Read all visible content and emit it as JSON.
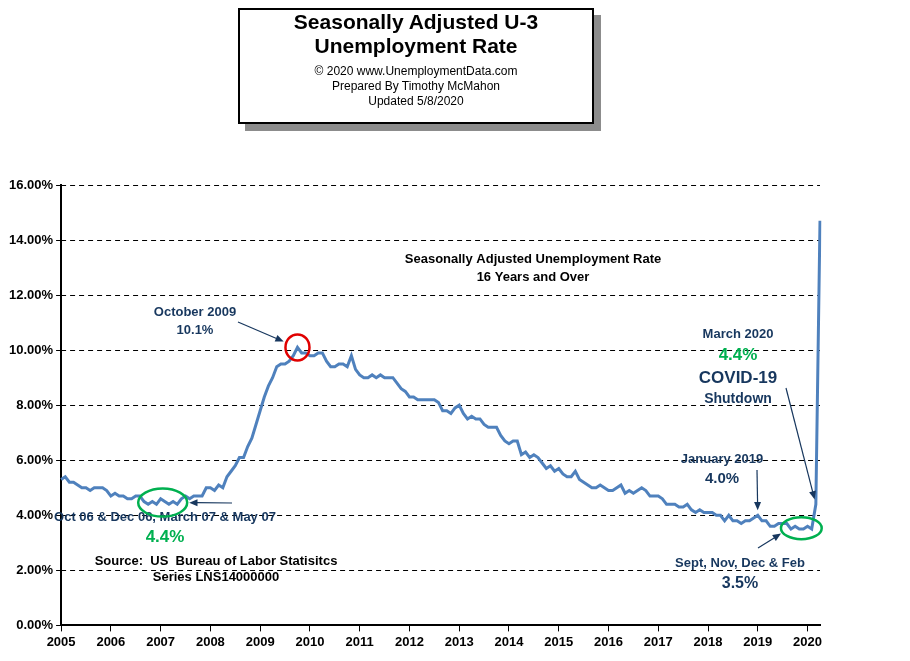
{
  "chart_data": {
    "type": "line",
    "title": [
      "Seasonally Adjusted U-3",
      "Unemployment Rate"
    ],
    "subtitle": [
      "© 2020  www.UnemploymentData.com",
      "Prepared By Timothy McMahon",
      "Updated 5/8/2020"
    ],
    "plot_label": [
      "Seasonally Adjusted Unemployment Rate",
      "16 Years and Over"
    ],
    "source": [
      "Source:  US  Bureau of Labor Statisitcs",
      "Series LNS14000000"
    ],
    "annotations": [
      {
        "text": [
          "October 2009",
          "10.1%"
        ]
      },
      {
        "text": [
          "Oct 06 & Dec 06, March 07 & May 07",
          "4.4%"
        ]
      },
      {
        "text": [
          "January 2019",
          "4.0%"
        ]
      },
      {
        "text": [
          "March 2020",
          "4.4%",
          "COVID-19",
          "Shutdown"
        ]
      },
      {
        "text": [
          "Sept, Nov, Dec & Feb",
          "3.5%"
        ]
      }
    ],
    "categories": [
      "2005",
      null,
      null,
      null,
      null,
      null,
      null,
      null,
      null,
      null,
      null,
      null,
      "2006",
      null,
      null,
      null,
      null,
      null,
      null,
      null,
      null,
      null,
      null,
      null,
      "2007",
      null,
      null,
      null,
      null,
      null,
      null,
      null,
      null,
      null,
      null,
      null,
      "2008",
      null,
      null,
      null,
      null,
      null,
      null,
      null,
      null,
      null,
      null,
      null,
      "2009",
      null,
      null,
      null,
      null,
      null,
      null,
      null,
      null,
      null,
      null,
      null,
      "2010",
      null,
      null,
      null,
      null,
      null,
      null,
      null,
      null,
      null,
      null,
      null,
      "2011",
      null,
      null,
      null,
      null,
      null,
      null,
      null,
      null,
      null,
      null,
      null,
      "2012",
      null,
      null,
      null,
      null,
      null,
      null,
      null,
      null,
      null,
      null,
      null,
      "2013",
      null,
      null,
      null,
      null,
      null,
      null,
      null,
      null,
      null,
      null,
      null,
      "2014",
      null,
      null,
      null,
      null,
      null,
      null,
      null,
      null,
      null,
      null,
      null,
      "2015",
      null,
      null,
      null,
      null,
      null,
      null,
      null,
      null,
      null,
      null,
      null,
      "2016",
      null,
      null,
      null,
      null,
      null,
      null,
      null,
      null,
      null,
      null,
      null,
      "2017",
      null,
      null,
      null,
      null,
      null,
      null,
      null,
      null,
      null,
      null,
      null,
      "2018",
      null,
      null,
      null,
      null,
      null,
      null,
      null,
      null,
      null,
      null,
      null,
      "2019",
      null,
      null,
      null,
      null,
      null,
      null,
      null,
      null,
      null,
      null,
      null,
      "2020",
      null,
      null,
      null
    ],
    "values": [
      5.3,
      5.4,
      5.2,
      5.2,
      5.1,
      5.0,
      5.0,
      4.9,
      5.0,
      5.0,
      5.0,
      4.9,
      4.7,
      4.8,
      4.7,
      4.7,
      4.6,
      4.6,
      4.7,
      4.7,
      4.5,
      4.4,
      4.5,
      4.4,
      4.6,
      4.5,
      4.4,
      4.5,
      4.4,
      4.6,
      4.7,
      4.6,
      4.7,
      4.7,
      4.7,
      5.0,
      5.0,
      4.9,
      5.1,
      5.0,
      5.4,
      5.6,
      5.8,
      6.1,
      6.1,
      6.5,
      6.8,
      7.3,
      7.8,
      8.3,
      8.7,
      9.0,
      9.4,
      9.5,
      9.5,
      9.6,
      9.8,
      10.1,
      9.9,
      9.9,
      9.8,
      9.8,
      9.9,
      9.9,
      9.6,
      9.4,
      9.4,
      9.5,
      9.5,
      9.4,
      9.8,
      9.3,
      9.1,
      9.0,
      9.0,
      9.1,
      9.0,
      9.1,
      9.0,
      9.0,
      9.0,
      8.8,
      8.6,
      8.5,
      8.3,
      8.3,
      8.2,
      8.2,
      8.2,
      8.2,
      8.2,
      8.1,
      7.8,
      7.8,
      7.7,
      7.9,
      8.0,
      7.7,
      7.5,
      7.6,
      7.5,
      7.5,
      7.3,
      7.2,
      7.2,
      7.2,
      6.9,
      6.7,
      6.6,
      6.7,
      6.7,
      6.2,
      6.3,
      6.1,
      6.2,
      6.1,
      5.9,
      5.7,
      5.8,
      5.6,
      5.7,
      5.5,
      5.4,
      5.4,
      5.6,
      5.3,
      5.2,
      5.1,
      5.0,
      5.0,
      5.1,
      5.0,
      4.9,
      4.9,
      5.0,
      5.1,
      4.8,
      4.9,
      4.8,
      4.9,
      5.0,
      4.9,
      4.7,
      4.7,
      4.7,
      4.6,
      4.4,
      4.4,
      4.4,
      4.3,
      4.3,
      4.4,
      4.2,
      4.1,
      4.2,
      4.1,
      4.1,
      4.1,
      4.0,
      4.0,
      3.8,
      4.0,
      3.8,
      3.8,
      3.7,
      3.8,
      3.8,
      3.9,
      4.0,
      3.8,
      3.8,
      3.6,
      3.6,
      3.7,
      3.7,
      3.7,
      3.5,
      3.6,
      3.5,
      3.5,
      3.6,
      3.5,
      4.4,
      14.7
    ],
    "color": "#4f81bd",
    "ylim": [
      0,
      16
    ],
    "yticks": [
      {
        "value": 0,
        "label": "0.00%"
      },
      {
        "value": 2,
        "label": "2.00%"
      },
      {
        "value": 4,
        "label": "4.00%"
      },
      {
        "value": 6,
        "label": "6.00%"
      },
      {
        "value": 8,
        "label": "8.00%"
      },
      {
        "value": 10,
        "label": "10.00%"
      },
      {
        "value": 12,
        "label": "12.00%"
      },
      {
        "value": 14,
        "label": "14.00%"
      },
      {
        "value": 16,
        "label": "16.00%"
      }
    ],
    "grid": true
  }
}
